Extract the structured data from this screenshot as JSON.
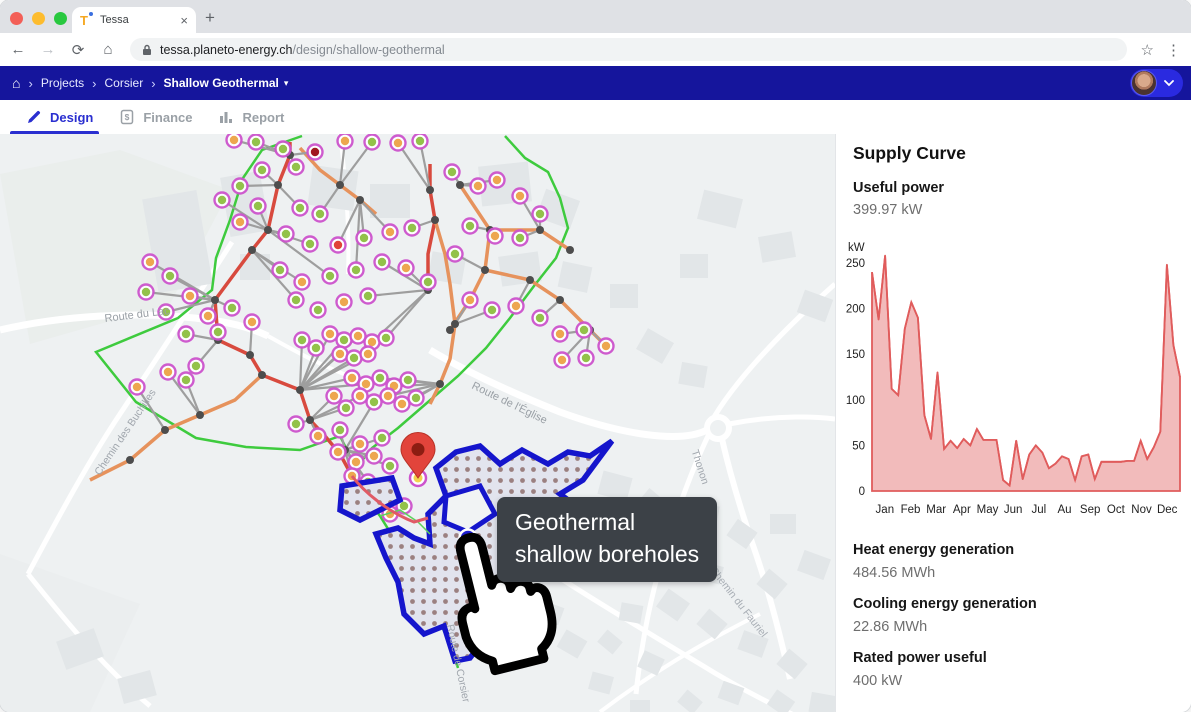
{
  "browser": {
    "favicon_letter": "T",
    "tab_title": "Tessa",
    "close_tab_glyph": "×",
    "new_tab_glyph": "+",
    "back_glyph": "←",
    "forward_glyph": "→",
    "reload_glyph": "⟳",
    "home_glyph": "⌂",
    "star_glyph": "☆",
    "menu_glyph": "⋮",
    "url_host": "tessa.planeto-energy.ch",
    "url_path": "/design/shallow-geothermal"
  },
  "nav": {
    "home_glyph": "⌂",
    "separator_glyph": "›",
    "breadcrumb": [
      "Projects",
      "Corsier",
      "Shallow Geothermal"
    ],
    "caret_glyph": "▾",
    "bar_color": "#15159c"
  },
  "tabs": {
    "design": "Design",
    "finance": "Finance",
    "report": "Report",
    "active_color": "#2a2fd0"
  },
  "map": {
    "tooltip": {
      "line1": "Geothermal",
      "line2": "shallow boreholes"
    },
    "labels": {
      "lac": "Route du Lac",
      "buchilles": "Chemin des Buchilles",
      "eglise": "Route de l'Église",
      "maisons": "MAISONS NEUVES",
      "thonon": "Thonon",
      "corsier": "Route de Corsier",
      "fauriel": "Chemin du Fauriel"
    },
    "colors": {
      "boundary_green": "#3ecb3e",
      "pipe_orange": "#e6925c",
      "pipe_red": "#d84a3e",
      "marker_ring": "#cd54cd",
      "marker_green": "#93c24a",
      "marker_orange": "#eda74f",
      "borehole_blue": "#1515cc"
    }
  },
  "panel": {
    "title": "Supply Curve",
    "useful_power": {
      "label": "Useful power",
      "value": "399.97 kW"
    },
    "heat": {
      "label": "Heat energy generation",
      "value": "484.56 MWh"
    },
    "cooling": {
      "label": "Cooling energy generation",
      "value": "22.86 MWh"
    },
    "rated": {
      "label": "Rated power useful",
      "value": "400 kW"
    }
  },
  "chart_data": {
    "type": "area",
    "title": "Supply Curve",
    "ylabel": "kW",
    "yticks": [
      0,
      50,
      100,
      150,
      200,
      250
    ],
    "ylim": [
      0,
      260
    ],
    "x_categories": [
      "Jan",
      "Feb",
      "Mar",
      "Apr",
      "May",
      "Jun",
      "Jul",
      "Au",
      "Sep",
      "Oct",
      "Nov",
      "Dec"
    ],
    "values": [
      240,
      188,
      258,
      112,
      105,
      178,
      207,
      190,
      83,
      57,
      130,
      46,
      55,
      47,
      57,
      50,
      68,
      56,
      56,
      56,
      12,
      6,
      55,
      13,
      40,
      50,
      42,
      25,
      30,
      38,
      35,
      12,
      38,
      40,
      13,
      32,
      32,
      32,
      32,
      33,
      33,
      55,
      35,
      48,
      65,
      248,
      160,
      125
    ],
    "line_color": "#e05c5c",
    "fill_color": "rgba(224,92,92,0.42)",
    "legend": null,
    "grid": false
  }
}
